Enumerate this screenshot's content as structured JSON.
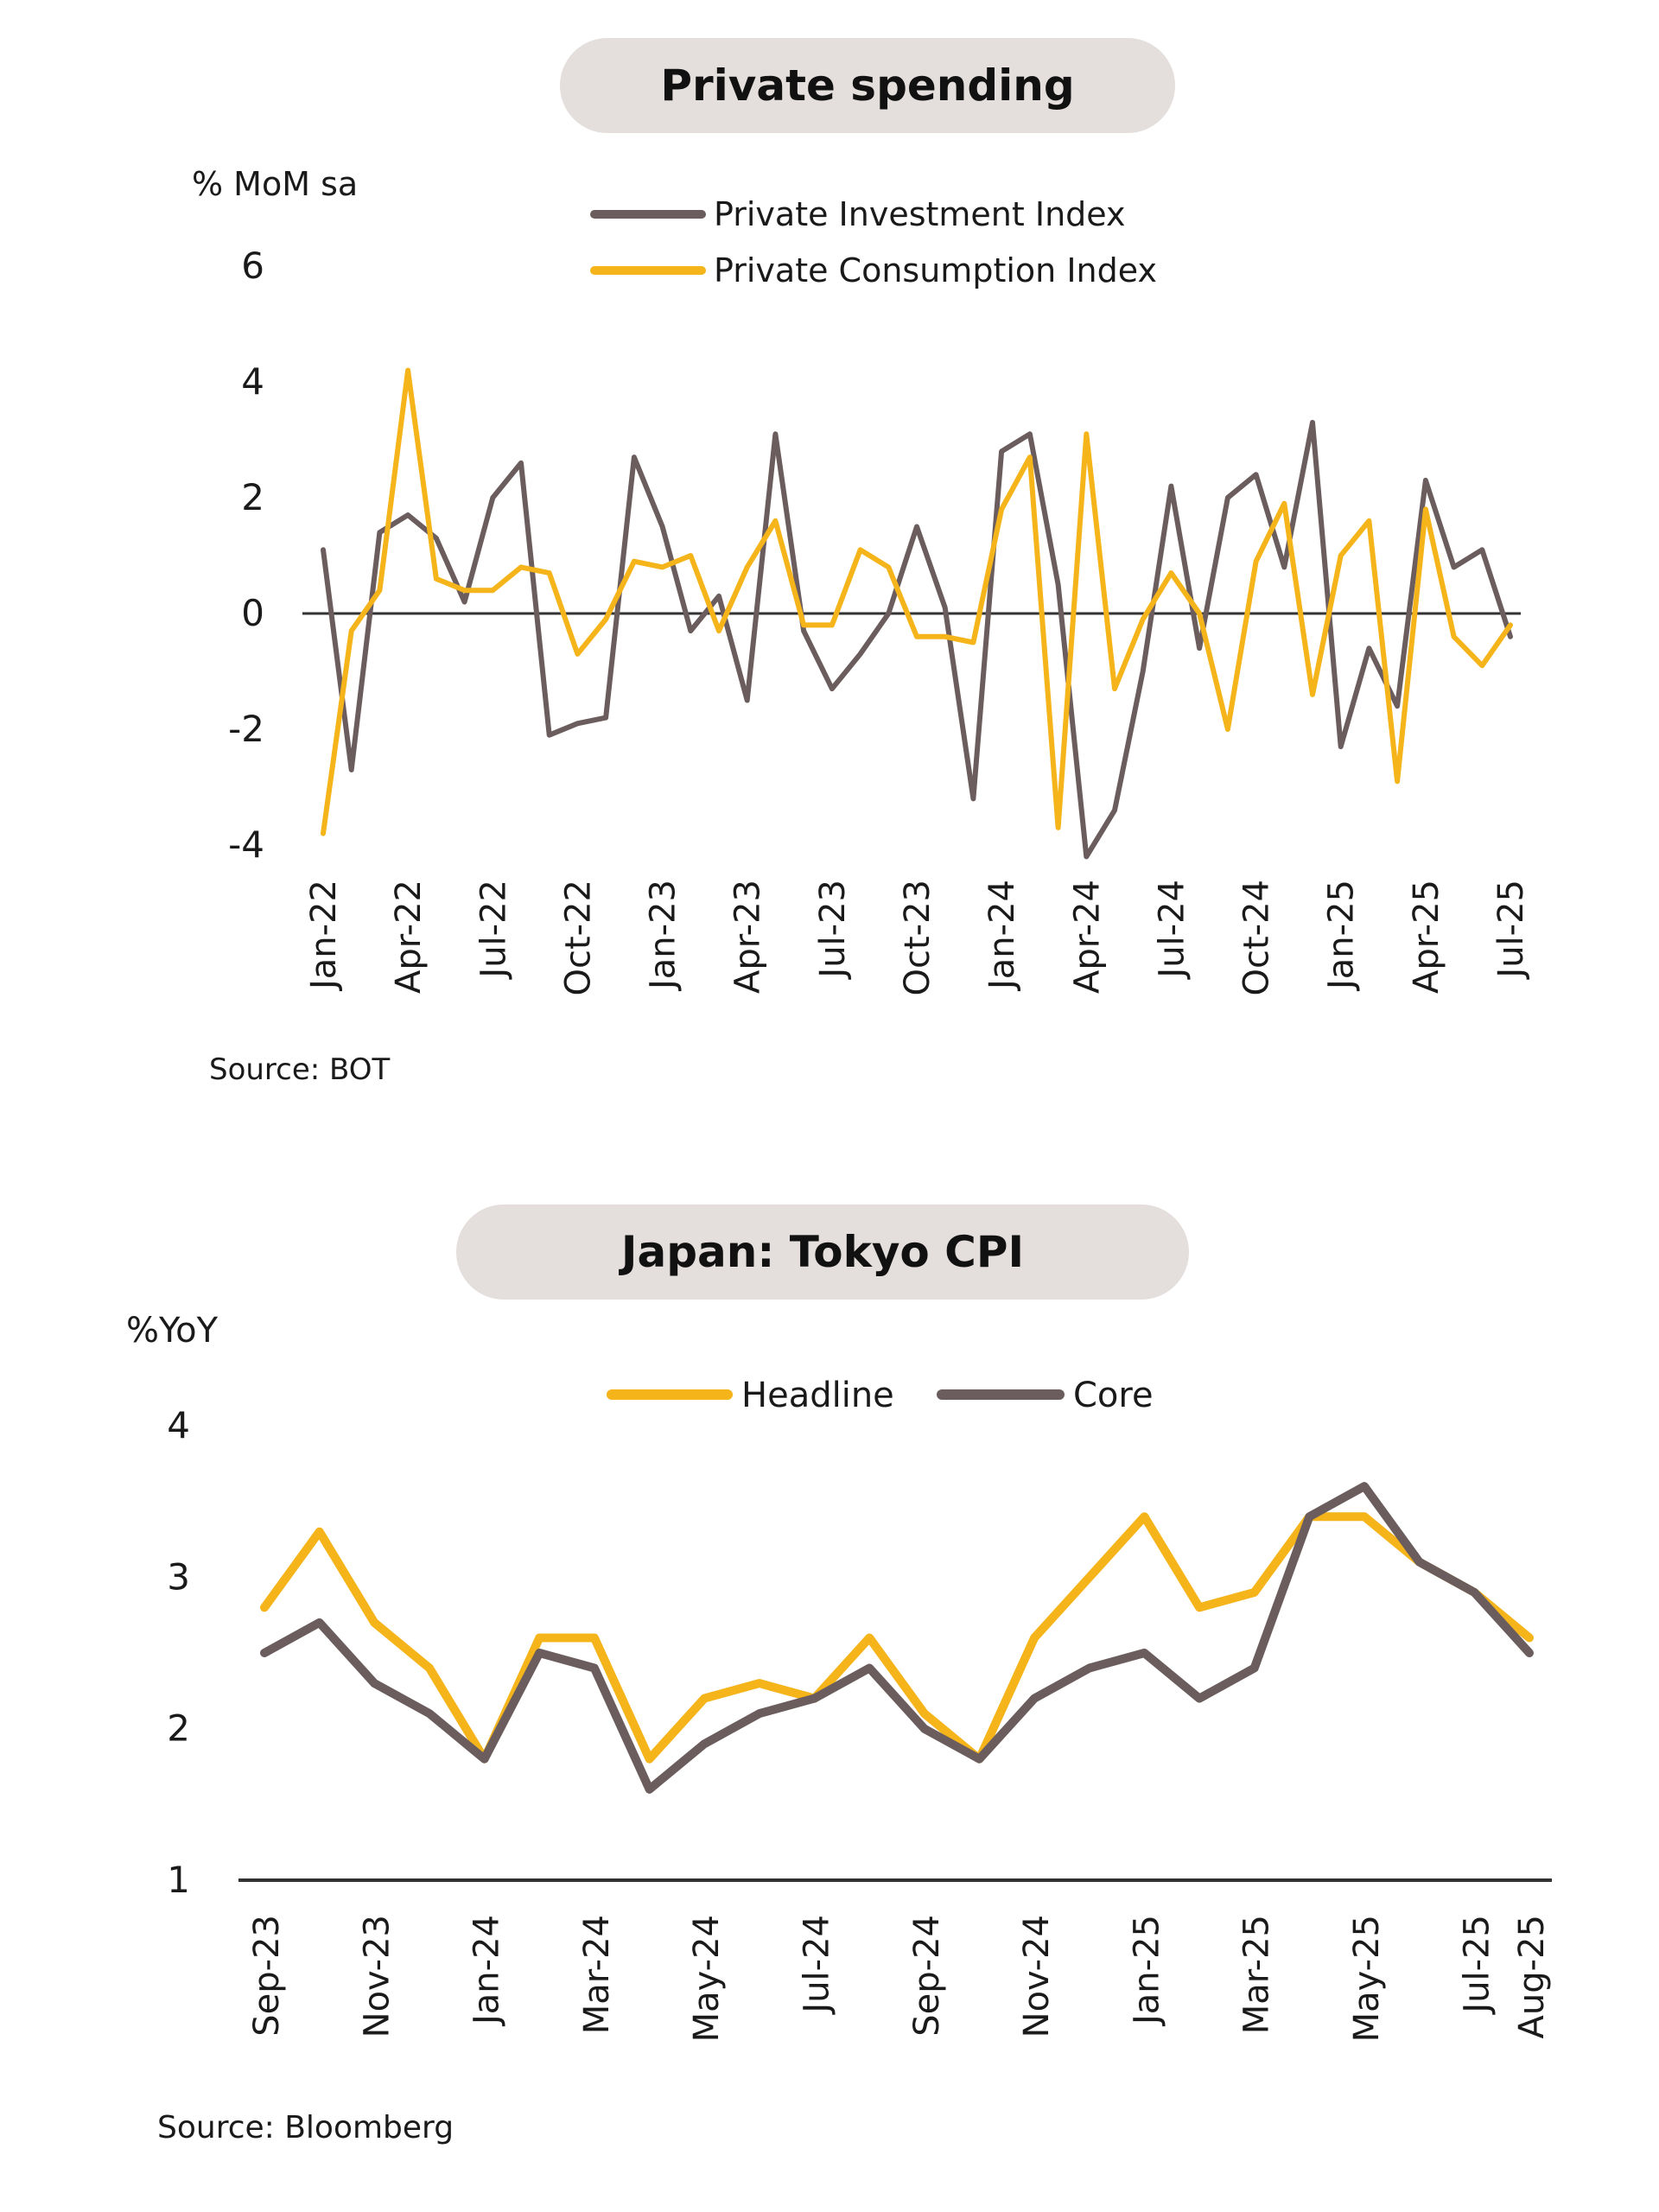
{
  "colors": {
    "investment": "#6b5d5e",
    "consumption": "#f4b41a",
    "headline": "#f4b41a",
    "core": "#6b5d5e",
    "pill": "#e4dedc",
    "axis": "#333333"
  },
  "charts": [
    {
      "title": "Private spending",
      "unit": "% MoM sa",
      "source": "Source: BOT",
      "legend": [
        "Private Investment Index",
        "Private Consumption Index"
      ]
    },
    {
      "title": "Japan: Tokyo CPI",
      "unit": "%YoY",
      "source": "Source: Bloomberg",
      "legend": [
        "Headline",
        "Core"
      ]
    }
  ],
  "chart_data": [
    {
      "type": "line",
      "title": "Private spending",
      "ylabel": "% MoM sa",
      "ylim": [
        -4,
        6
      ],
      "yticks": [
        "-4",
        "-2",
        "0",
        "2",
        "4",
        "6"
      ],
      "x": [
        "Jan-22",
        "Feb-22",
        "Mar-22",
        "Apr-22",
        "May-22",
        "Jun-22",
        "Jul-22",
        "Aug-22",
        "Sep-22",
        "Oct-22",
        "Nov-22",
        "Dec-22",
        "Jan-23",
        "Feb-23",
        "Mar-23",
        "Apr-23",
        "May-23",
        "Jun-23",
        "Jul-23",
        "Aug-23",
        "Sep-23",
        "Oct-23",
        "Nov-23",
        "Dec-23",
        "Jan-24",
        "Feb-24",
        "Mar-24",
        "Apr-24",
        "May-24",
        "Jun-24",
        "Jul-24",
        "Aug-24",
        "Sep-24",
        "Oct-24",
        "Nov-24",
        "Dec-24",
        "Jan-25",
        "Feb-25",
        "Mar-25",
        "Apr-25",
        "May-25",
        "Jun-25",
        "Jul-25"
      ],
      "xticks": [
        "Jan-22",
        "Apr-22",
        "Jul-22",
        "Oct-22",
        "Jan-23",
        "Apr-23",
        "Jul-23",
        "Oct-23",
        "Jan-24",
        "Apr-24",
        "Jul-24",
        "Oct-24",
        "Jan-25",
        "Apr-25",
        "Jul-25"
      ],
      "series": [
        {
          "name": "Private Investment Index",
          "color": "#6b5d5e",
          "values": [
            1.1,
            -2.7,
            1.4,
            1.7,
            1.3,
            0.2,
            2.0,
            2.6,
            -2.1,
            -1.9,
            -1.8,
            2.7,
            1.5,
            -0.3,
            0.3,
            -1.5,
            3.1,
            -0.3,
            -1.3,
            -0.7,
            0.0,
            1.5,
            0.1,
            -3.2,
            2.8,
            3.1,
            0.5,
            -4.2,
            -3.4,
            -1.0,
            2.2,
            -0.6,
            2.0,
            2.4,
            0.8,
            3.3,
            -2.3,
            -0.6,
            -1.6,
            2.3,
            0.8,
            1.1,
            -0.4
          ]
        },
        {
          "name": "Private Consumption Index",
          "color": "#f4b41a",
          "values": [
            -3.8,
            -0.3,
            0.4,
            4.2,
            0.6,
            0.4,
            0.4,
            0.8,
            0.7,
            -0.7,
            -0.1,
            0.9,
            0.8,
            1.0,
            -0.3,
            0.8,
            1.6,
            -0.2,
            -0.2,
            1.1,
            0.8,
            -0.4,
            -0.4,
            -0.5,
            1.8,
            2.7,
            -3.7,
            3.1,
            -1.3,
            -0.1,
            0.7,
            0.0,
            -2.0,
            0.9,
            1.9,
            -1.4,
            1.0,
            1.6,
            -2.9,
            1.8,
            -0.4,
            -0.9,
            -0.2
          ]
        }
      ]
    },
    {
      "type": "line",
      "title": "Japan: Tokyo CPI",
      "ylabel": "%YoY",
      "ylim": [
        1,
        4
      ],
      "yticks": [
        "1",
        "2",
        "3",
        "4"
      ],
      "x": [
        "Sep-23",
        "Oct-23",
        "Nov-23",
        "Dec-23",
        "Jan-24",
        "Feb-24",
        "Mar-24",
        "Apr-24",
        "May-24",
        "Jun-24",
        "Jul-24",
        "Aug-24",
        "Sep-24",
        "Oct-24",
        "Nov-24",
        "Dec-24",
        "Jan-25",
        "Feb-25",
        "Mar-25",
        "Apr-25",
        "May-25",
        "Jun-25",
        "Jul-25",
        "Aug-25"
      ],
      "xticks": [
        "Sep-23",
        "Nov-23",
        "Jan-24",
        "Mar-24",
        "May-24",
        "Jul-24",
        "Sep-24",
        "Nov-24",
        "Jan-25",
        "Mar-25",
        "May-25",
        "Jul-25",
        "Aug-25"
      ],
      "series": [
        {
          "name": "Headline",
          "color": "#f4b41a",
          "values": [
            2.8,
            3.3,
            2.7,
            2.4,
            1.8,
            2.6,
            2.6,
            1.8,
            2.2,
            2.3,
            2.2,
            2.6,
            2.1,
            1.8,
            2.6,
            3.0,
            3.4,
            2.8,
            2.9,
            3.4,
            3.4,
            3.1,
            2.9,
            2.6
          ]
        },
        {
          "name": "Core",
          "color": "#6b5d5e",
          "values": [
            2.5,
            2.7,
            2.3,
            2.1,
            1.8,
            2.5,
            2.4,
            1.6,
            1.9,
            2.1,
            2.2,
            2.4,
            2.0,
            1.8,
            2.2,
            2.4,
            2.5,
            2.2,
            2.4,
            3.4,
            3.6,
            3.1,
            2.9,
            2.5
          ]
        }
      ]
    }
  ]
}
